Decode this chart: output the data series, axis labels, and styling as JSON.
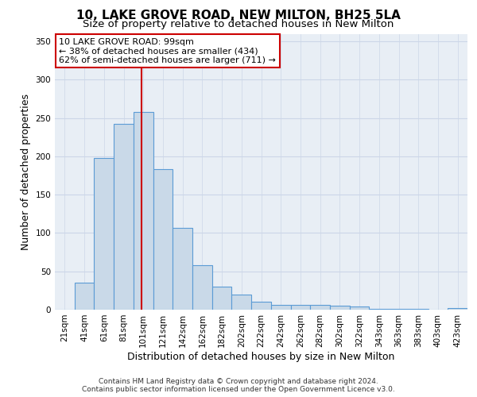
{
  "title": "10, LAKE GROVE ROAD, NEW MILTON, BH25 5LA",
  "subtitle": "Size of property relative to detached houses in New Milton",
  "xlabel": "Distribution of detached houses by size in New Milton",
  "ylabel": "Number of detached properties",
  "categories": [
    "21sqm",
    "41sqm",
    "61sqm",
    "81sqm",
    "101sqm",
    "121sqm",
    "142sqm",
    "162sqm",
    "182sqm",
    "202sqm",
    "222sqm",
    "242sqm",
    "262sqm",
    "282sqm",
    "302sqm",
    "322sqm",
    "343sqm",
    "363sqm",
    "383sqm",
    "403sqm",
    "423sqm"
  ],
  "values": [
    0,
    35,
    198,
    242,
    258,
    183,
    107,
    58,
    30,
    20,
    10,
    6,
    6,
    6,
    5,
    4,
    1,
    1,
    1,
    0,
    2
  ],
  "bar_color": "#c9d9e8",
  "bar_edge_color": "#5b9bd5",
  "bar_edge_width": 0.8,
  "ylim": [
    0,
    360
  ],
  "yticks": [
    0,
    50,
    100,
    150,
    200,
    250,
    300,
    350
  ],
  "grid_color": "#ccd6e8",
  "background_color": "#e8eef5",
  "red_line_color": "#cc0000",
  "annotation_text": "10 LAKE GROVE ROAD: 99sqm\n← 38% of detached houses are smaller (434)\n62% of semi-detached houses are larger (711) →",
  "annotation_box_color": "#ffffff",
  "annotation_box_edge": "#cc0000",
  "footer_line1": "Contains HM Land Registry data © Crown copyright and database right 2024.",
  "footer_line2": "Contains public sector information licensed under the Open Government Licence v3.0.",
  "title_fontsize": 11,
  "subtitle_fontsize": 9.5,
  "xlabel_fontsize": 9,
  "ylabel_fontsize": 9,
  "tick_fontsize": 7.5,
  "annotation_fontsize": 8,
  "footer_fontsize": 6.5
}
